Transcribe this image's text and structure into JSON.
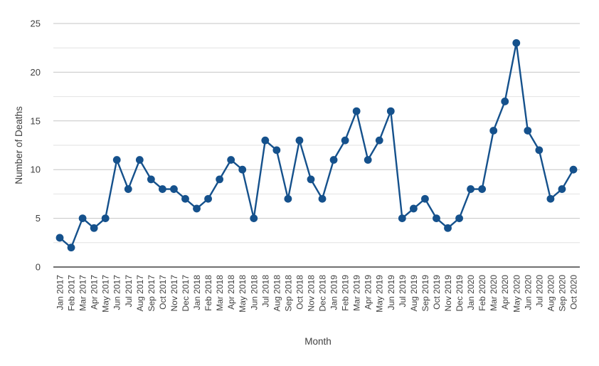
{
  "chart_data": {
    "type": "line",
    "title": "",
    "xlabel": "Month",
    "ylabel": "Number of Deaths",
    "x": [
      "Jan 2017",
      "Feb 2017",
      "Mar 2017",
      "Apr 2017",
      "May 2017",
      "Jun 2017",
      "Jul 2017",
      "Aug 2017",
      "Sep 2017",
      "Oct 2017",
      "Nov 2017",
      "Dec 2017",
      "Jan 2018",
      "Feb 2018",
      "Mar 2018",
      "Apr 2018",
      "May 2018",
      "Jun 2018",
      "Jul 2018",
      "Aug 2018",
      "Sep 2018",
      "Oct 2018",
      "Nov 2018",
      "Dec 2018",
      "Jan 2019",
      "Feb 2019",
      "Mar 2019",
      "Apr 2019",
      "May 2019",
      "Jun 2019",
      "Jul 2019",
      "Aug 2019",
      "Sep 2019",
      "Oct 2019",
      "Nov 2019",
      "Dec 2019",
      "Jan 2020",
      "Feb 2020",
      "Mar 2020",
      "Apr 2020",
      "May 2020",
      "Jun 2020",
      "Jul 2020",
      "Aug 2020",
      "Sep 2020",
      "Oct 2020"
    ],
    "values": [
      3,
      2,
      5,
      4,
      5,
      11,
      8,
      11,
      9,
      8,
      8,
      7,
      6,
      7,
      9,
      11,
      10,
      5,
      13,
      12,
      7,
      13,
      9,
      7,
      11,
      13,
      16,
      11,
      13,
      16,
      5,
      6,
      7,
      5,
      4,
      5,
      8,
      8,
      14,
      17,
      23,
      14,
      12,
      7,
      8,
      10
    ],
    "ylim": [
      0,
      25
    ],
    "yticks": [
      0,
      5,
      10,
      15,
      20,
      25
    ],
    "minor_yticks": [
      2.5,
      7.5,
      12.5,
      17.5,
      22.5
    ],
    "grid": true,
    "legend": "none",
    "marker": "circle",
    "colors": {
      "line": "#15518c",
      "marker": "#15518c",
      "major_grid": "#c6c6c6",
      "minor_grid": "#e2e2e2",
      "axis": "#404040",
      "text": "#404040",
      "background": "#ffffff"
    }
  }
}
